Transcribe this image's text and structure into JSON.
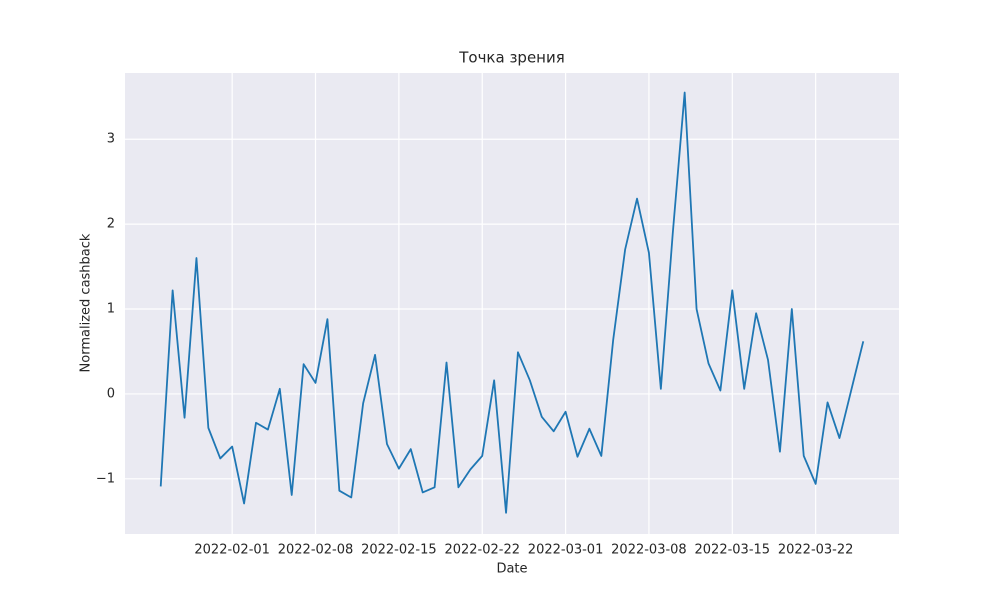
{
  "chart_data": {
    "type": "line",
    "title": "Точка зрения",
    "x_label": "Date",
    "y_label": "Normalized cashback",
    "x": [
      "2022-01-26",
      "2022-01-27",
      "2022-01-28",
      "2022-01-29",
      "2022-01-30",
      "2022-01-31",
      "2022-02-01",
      "2022-02-02",
      "2022-02-03",
      "2022-02-04",
      "2022-02-05",
      "2022-02-06",
      "2022-02-07",
      "2022-02-08",
      "2022-02-09",
      "2022-02-10",
      "2022-02-11",
      "2022-02-12",
      "2022-02-13",
      "2022-02-14",
      "2022-02-15",
      "2022-02-16",
      "2022-02-17",
      "2022-02-18",
      "2022-02-19",
      "2022-02-20",
      "2022-02-21",
      "2022-02-22",
      "2022-02-23",
      "2022-02-24",
      "2022-02-25",
      "2022-02-26",
      "2022-02-27",
      "2022-02-28",
      "2022-03-01",
      "2022-03-02",
      "2022-03-03",
      "2022-03-04",
      "2022-03-05",
      "2022-03-06",
      "2022-03-07",
      "2022-03-08",
      "2022-03-09",
      "2022-03-10",
      "2022-03-11",
      "2022-03-12",
      "2022-03-13",
      "2022-03-14",
      "2022-03-15",
      "2022-03-16",
      "2022-03-17",
      "2022-03-18",
      "2022-03-19",
      "2022-03-20",
      "2022-03-21",
      "2022-03-22",
      "2022-03-23",
      "2022-03-24",
      "2022-03-25",
      "2022-03-26"
    ],
    "values": [
      -1.09,
      1.22,
      -0.28,
      1.6,
      -0.4,
      -0.76,
      -0.62,
      -1.29,
      -0.34,
      -0.42,
      0.06,
      -1.19,
      0.35,
      0.13,
      0.88,
      -1.14,
      -1.22,
      -0.11,
      0.46,
      -0.59,
      -0.88,
      -0.65,
      -1.16,
      -1.1,
      0.37,
      -1.1,
      -0.89,
      -0.73,
      0.16,
      -1.4,
      0.49,
      0.16,
      -0.27,
      -0.44,
      -0.21,
      -0.74,
      -0.41,
      -0.73,
      0.64,
      1.7,
      2.3,
      1.66,
      0.06,
      1.89,
      3.55,
      1.0,
      0.36,
      0.04,
      1.22,
      0.06,
      0.95,
      0.4,
      -0.68,
      1.0,
      -0.73,
      -1.06,
      -0.1,
      -0.52,
      0.05,
      0.62
    ],
    "color": "#1f77b4",
    "xlim": [
      "2022-01-23",
      "2022-03-29"
    ],
    "xticks": [
      "2022-02-01",
      "2022-02-08",
      "2022-02-15",
      "2022-02-22",
      "2022-03-01",
      "2022-03-08",
      "2022-03-15",
      "2022-03-22"
    ],
    "ylim": [
      -1.65,
      3.78
    ],
    "yticks": [
      {
        "value": -1,
        "label": "−1"
      },
      0,
      1,
      2,
      3
    ],
    "grid": true
  }
}
